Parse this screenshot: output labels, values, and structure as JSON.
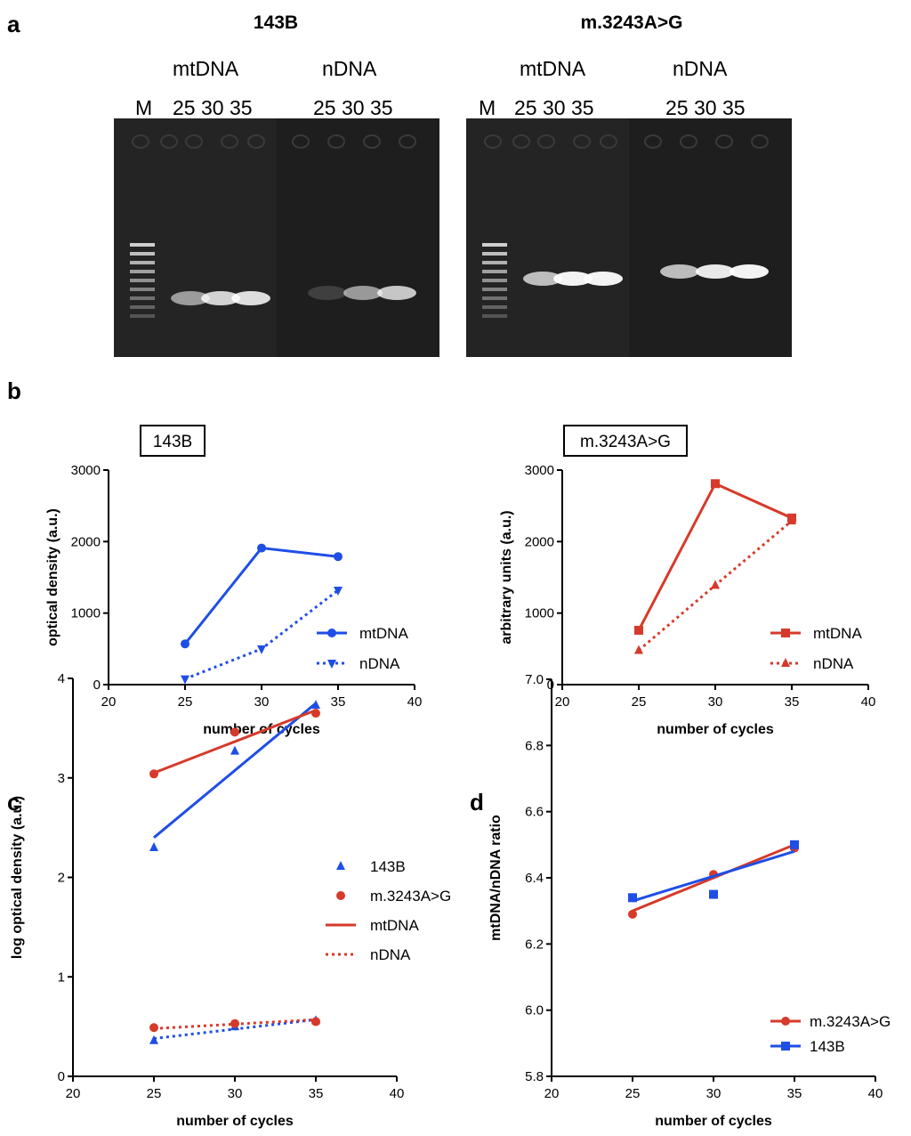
{
  "panels": {
    "a": "a",
    "b": "b",
    "c": "c",
    "d": "d"
  },
  "gels": [
    {
      "title": "143B",
      "group1": "mtDNA",
      "group2": "nDNA",
      "marker": "M",
      "lanes1": "25 30 35",
      "lanes2": "25 30 35",
      "band_intensity": {
        "mtDNA": [
          0.55,
          0.8,
          0.85
        ],
        "nDNA": [
          0.15,
          0.55,
          0.75
        ]
      }
    },
    {
      "title": "m.3243A>G",
      "group1": "mtDNA",
      "group2": "nDNA",
      "marker": "M",
      "lanes1": "25 30 35",
      "lanes2": "25 30 35",
      "band_intensity": {
        "mtDNA": [
          0.7,
          0.95,
          0.95
        ],
        "nDNA": [
          0.7,
          0.9,
          0.95
        ]
      }
    }
  ],
  "colors": {
    "blue": "#1f4ee6",
    "red": "#d63a2a"
  },
  "chart_data": [
    {
      "id": "b-left",
      "type": "line",
      "boxed_title": "143B",
      "xlabel": "number of cycles",
      "ylabel": "optical density (a.u.)",
      "xlim": [
        20,
        40
      ],
      "ylim": [
        0,
        3000
      ],
      "xticks": [
        20,
        25,
        30,
        35,
        40
      ],
      "yticks": [
        0,
        1000,
        2000,
        3000
      ],
      "x": [
        25,
        30,
        35
      ],
      "series": [
        {
          "name": "mtDNA",
          "values": [
            570,
            1910,
            1790
          ],
          "color": "#1f4ee6",
          "dash": false,
          "marker": "circle"
        },
        {
          "name": "nDNA",
          "values": [
            80,
            500,
            1320
          ],
          "color": "#1f4ee6",
          "dash": true,
          "marker": "triangle-down"
        }
      ],
      "legend": "right"
    },
    {
      "id": "b-right",
      "type": "line",
      "boxed_title": "m.3243A>G",
      "xlabel": "number of cycles",
      "ylabel": "arbitrary units (a.u.)",
      "xlim": [
        20,
        40
      ],
      "ylim": [
        0,
        3000
      ],
      "xticks": [
        20,
        25,
        30,
        35,
        40
      ],
      "yticks": [
        0,
        1000,
        2000,
        3000
      ],
      "x": [
        25,
        30,
        35
      ],
      "series": [
        {
          "name": "mtDNA",
          "values": [
            760,
            2810,
            2330
          ],
          "color": "#d63a2a",
          "dash": false,
          "marker": "square"
        },
        {
          "name": "nDNA",
          "values": [
            480,
            1390,
            2290
          ],
          "color": "#d63a2a",
          "dash": true,
          "marker": "triangle-up"
        }
      ],
      "legend": "right"
    },
    {
      "id": "c",
      "type": "scatter",
      "xlabel": "number of cycles",
      "ylabel": "log optical density (a.u.)",
      "xlim": [
        20,
        40
      ],
      "ylim": [
        0,
        4
      ],
      "xticks": [
        20,
        25,
        30,
        35,
        40
      ],
      "yticks": [
        0,
        1,
        2,
        3,
        4
      ],
      "x": [
        25,
        30,
        35
      ],
      "series": [
        {
          "name": "143B",
          "role": "mtDNA",
          "values": [
            2.3,
            3.27,
            3.73
          ],
          "fit": [
            2.4,
            3.75
          ],
          "color": "#1f4ee6",
          "dash": false,
          "marker": "triangle-up"
        },
        {
          "name": "143B",
          "role": "nDNA",
          "values": [
            0.36,
            0.5,
            0.56
          ],
          "fit": [
            0.38,
            0.57
          ],
          "color": "#1f4ee6",
          "dash": true,
          "marker": "triangle-up"
        },
        {
          "name": "m.3243A>G",
          "role": "mtDNA",
          "values": [
            3.04,
            3.46,
            3.65
          ],
          "fit": [
            3.05,
            3.68
          ],
          "color": "#d63a2a",
          "dash": false,
          "marker": "circle"
        },
        {
          "name": "m.3243A>G",
          "role": "nDNA",
          "values": [
            0.49,
            0.53,
            0.55
          ],
          "fit": [
            0.48,
            0.57
          ],
          "color": "#d63a2a",
          "dash": true,
          "marker": "circle"
        }
      ],
      "legend_entries": [
        {
          "label": "143B",
          "kind": "marker",
          "marker": "triangle-up",
          "color": "#1f4ee6"
        },
        {
          "label": "m.3243A>G",
          "kind": "marker",
          "marker": "circle",
          "color": "#d63a2a"
        },
        {
          "label": "mtDNA",
          "kind": "line",
          "dash": false,
          "color": "#d63a2a"
        },
        {
          "label": "nDNA",
          "kind": "line",
          "dash": true,
          "color": "#d63a2a"
        }
      ],
      "legend": "right"
    },
    {
      "id": "d",
      "type": "line",
      "xlabel": "number of cycles",
      "ylabel": "mtDNA/nDNA ratio",
      "xlim": [
        20,
        40
      ],
      "ylim": [
        5.8,
        7.0
      ],
      "xticks": [
        20,
        25,
        30,
        35,
        40
      ],
      "yticks": [
        5.8,
        6.0,
        6.2,
        6.4,
        6.6,
        6.8,
        7.0
      ],
      "x": [
        25,
        30,
        35
      ],
      "series": [
        {
          "name": "m.3243A>G",
          "values": [
            6.29,
            6.41,
            6.49
          ],
          "fit": [
            6.3,
            6.5
          ],
          "color": "#d63a2a",
          "marker": "circle"
        },
        {
          "name": "143B",
          "values": [
            6.34,
            6.35,
            6.5
          ],
          "fit": [
            6.33,
            6.48
          ],
          "color": "#1f4ee6",
          "marker": "square"
        }
      ],
      "legend": "bottom-right"
    }
  ]
}
